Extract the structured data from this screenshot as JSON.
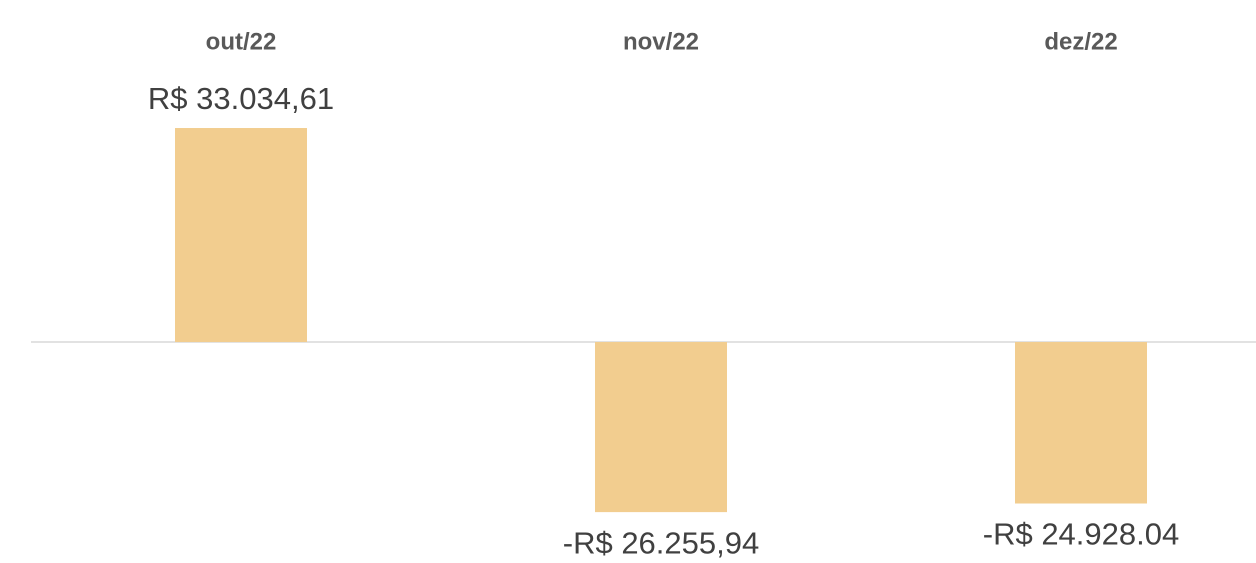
{
  "chart_data": {
    "type": "bar",
    "categories": [
      "out/22",
      "nov/22",
      "dez/22"
    ],
    "values": [
      33034.61,
      -26255.94,
      -24928.04
    ],
    "value_labels": [
      "R$ 33.034,61",
      "-R$ 26.255,94",
      "-R$ 24.928.04"
    ],
    "color": "#f2cd8f",
    "ylim": [
      -26500,
      33500
    ]
  }
}
